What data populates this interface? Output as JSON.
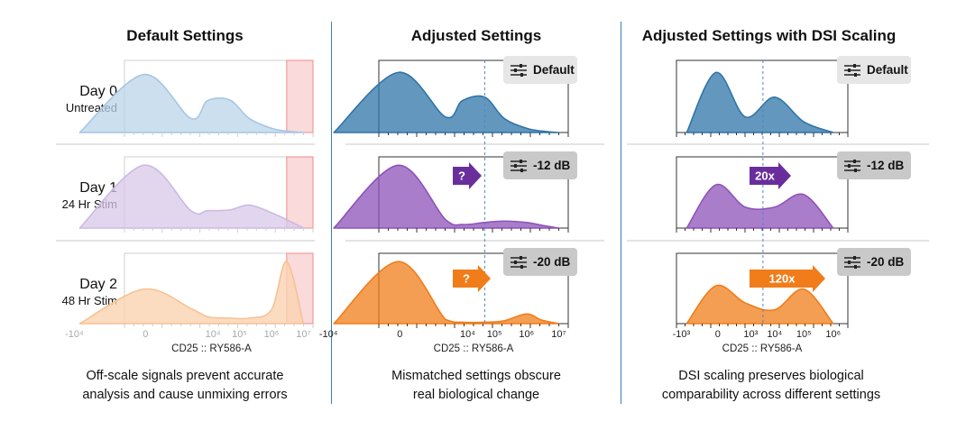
{
  "columns": [
    {
      "title": "Default Settings",
      "caption": [
        "Off-scale signals prevent accurate",
        "analysis and cause unmixing errors"
      ],
      "row_labels": [
        {
          "day": "Day 0",
          "sub": "Untreated"
        },
        {
          "day": "Day 1",
          "sub": "24 Hr Stim"
        },
        {
          "day": "Day 2",
          "sub": "48 Hr Stim"
        }
      ],
      "xlabel": "CD25 :: RY586-A",
      "ticks": [
        "-10⁴",
        "0",
        "10⁴",
        "10⁵",
        "10⁶",
        "10⁷"
      ]
    },
    {
      "title": "Adjusted Settings",
      "caption": [
        "Mismatched settings obscure",
        "real biological change"
      ],
      "badges": [
        "Default",
        "-12 dB",
        "-20 dB"
      ],
      "arrows": [
        "?",
        "?"
      ],
      "xlabel": "CD25 :: RY586-A",
      "ticks": [
        "-10⁴",
        "0",
        "10⁴",
        "10⁵",
        "10⁶",
        "10⁷"
      ]
    },
    {
      "title": "Adjusted Settings with DSI Scaling",
      "caption": [
        "DSI scaling preserves biological",
        "comparability across different settings"
      ],
      "badges": [
        "Default",
        "-12 dB",
        "-20 dB"
      ],
      "arrows": [
        "20x",
        "120x"
      ],
      "xlabel": "CD25 :: RY586-A",
      "ticks": [
        "-10³",
        "0",
        "10³",
        "10⁴",
        "10⁵",
        "10⁶"
      ]
    }
  ],
  "colors": {
    "day0": "#2f74a8",
    "day1": "#8e52b8",
    "day2": "#f07d1a",
    "offscale": "#f6c1c1",
    "arrow_purple": "#6a2e9c",
    "arrow_orange": "#f07d1a",
    "separator": "#3a7fb5"
  },
  "icons": {
    "badge": "sliders-icon"
  },
  "chart_data": [
    {
      "type": "area",
      "title": "Default Settings",
      "xlabel": "CD25 :: RY586-A",
      "xscale": "biexponential",
      "series": [
        {
          "name": "Day 0",
          "x": [
            -10000,
            0,
            3000,
            10000,
            50000,
            200000,
            1000000,
            3000000,
            10000000
          ],
          "y": [
            0,
            0.82,
            0.2,
            0.45,
            0.46,
            0.2,
            0.06,
            0.02,
            0
          ]
        },
        {
          "name": "Day 1",
          "x": [
            -10000,
            0,
            3000,
            10000,
            50000,
            200000,
            1000000,
            3000000,
            10000000
          ],
          "y": [
            0,
            0.9,
            0.25,
            0.25,
            0.26,
            0.33,
            0.22,
            0.12,
            0
          ]
        },
        {
          "name": "Day 2",
          "x": [
            -10000,
            0,
            3000,
            10000,
            50000,
            200000,
            1000000,
            3000000,
            10000000
          ],
          "y": [
            0,
            0.5,
            0.22,
            0.1,
            0.08,
            0.08,
            0.2,
            0.9,
            0
          ]
        }
      ],
      "offscale_region_x": [
        3000000,
        10000000
      ]
    },
    {
      "type": "area",
      "title": "Adjusted Settings",
      "xlabel": "CD25 :: RY586-A",
      "xscale": "biexponential",
      "series": [
        {
          "name": "Default",
          "x": [
            -10000,
            0,
            3000,
            10000,
            50000,
            200000,
            1000000,
            3000000,
            10000000
          ],
          "y": [
            0,
            0.85,
            0.22,
            0.45,
            0.5,
            0.2,
            0.06,
            0.02,
            0
          ]
        },
        {
          "name": "-12 dB",
          "x": [
            -10000,
            0,
            3000,
            10000,
            50000,
            200000,
            1000000,
            3000000,
            10000000
          ],
          "y": [
            0,
            0.9,
            0.12,
            0.05,
            0.08,
            0.1,
            0.08,
            0.04,
            0
          ]
        },
        {
          "name": "-20 dB",
          "x": [
            -10000,
            0,
            3000,
            10000,
            50000,
            200000,
            1000000,
            3000000,
            10000000
          ],
          "y": [
            0,
            0.9,
            0.06,
            0.02,
            0.02,
            0.04,
            0.14,
            0.05,
            0
          ]
        }
      ]
    },
    {
      "type": "area",
      "title": "Adjusted Settings with DSI Scaling",
      "xlabel": "CD25 :: RY586-A",
      "xscale": "biexponential",
      "series": [
        {
          "name": "Default",
          "x": [
            -1000,
            0,
            1000,
            10000,
            100000,
            1000000
          ],
          "y": [
            0,
            0.85,
            0.22,
            0.5,
            0.15,
            0
          ]
        },
        {
          "name": "-12 dB",
          "x": [
            -1000,
            0,
            1000,
            10000,
            100000,
            1000000
          ],
          "y": [
            0,
            0.62,
            0.3,
            0.3,
            0.48,
            0
          ]
        },
        {
          "name": "-20 dB",
          "x": [
            -1000,
            0,
            1000,
            10000,
            100000,
            1000000
          ],
          "y": [
            0,
            0.55,
            0.3,
            0.2,
            0.5,
            0
          ]
        }
      ]
    }
  ]
}
